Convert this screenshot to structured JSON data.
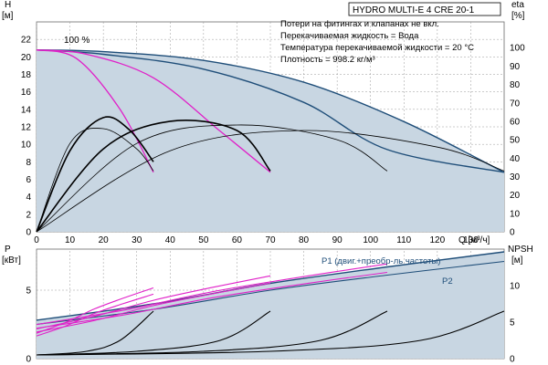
{
  "title": "HYDRO MULTI-E 4 CRE 20-1",
  "notes": [
    "Потери на фитингах и клапанах не вкл.",
    "Перекачиваемая жидкость = Вода",
    "Температура перекачиваемой жидкости = 20 °C",
    "Плотность = 998.2 кг/м³"
  ],
  "colors": {
    "shade": "#c8d6e2",
    "envelope": "#1f4e79",
    "pump_curve": "#000000",
    "efficiency": "#e020c8",
    "grid": "#9a9a9a",
    "p1_label": "#1f4e79"
  },
  "chart_data": [
    {
      "type": "line",
      "name": "top-head-chart",
      "xlabel": "Q [м³/ч]",
      "ylabel_left": "H",
      "ylabel_left_unit": "[м]",
      "ylabel_right": "eta",
      "ylabel_right_unit": "[%]",
      "x_ticks": [
        0,
        10,
        20,
        30,
        40,
        50,
        60,
        70,
        80,
        90,
        100,
        110,
        120,
        130
      ],
      "y_ticks_left": [
        0,
        2,
        4,
        6,
        8,
        10,
        12,
        14,
        16,
        18,
        20,
        22
      ],
      "y_ticks_right": [
        0,
        10,
        20,
        30,
        40,
        50,
        60,
        70,
        80,
        90,
        100
      ],
      "xlim": [
        0,
        140
      ],
      "ylim_left": [
        0,
        24
      ],
      "ylim_right": [
        0,
        114
      ],
      "annotation": "100 %",
      "series": [
        {
          "kind": "head",
          "x": [
            0,
            20,
            50,
            80,
            110,
            140
          ],
          "y": [
            20.8,
            20.6,
            19.6,
            17.1,
            12.6,
            6.8
          ]
        },
        {
          "kind": "head",
          "x": [
            0,
            20,
            50,
            80,
            105,
            140
          ],
          "y": [
            20.8,
            20.3,
            18.6,
            14.8,
            9.4,
            6.8
          ]
        },
        {
          "kind": "head",
          "x": [
            0,
            15,
            35,
            55,
            70
          ],
          "y": [
            20.8,
            20.3,
            17.6,
            11.5,
            6.8
          ]
        },
        {
          "kind": "head",
          "x": [
            0,
            12,
            25,
            35
          ],
          "y": [
            20.8,
            19.8,
            14.0,
            6.8
          ]
        },
        {
          "kind": "efficiency",
          "x": [
            0,
            10,
            20,
            30,
            35
          ],
          "y": [
            0,
            48,
            56,
            45,
            33
          ]
        },
        {
          "kind": "efficiency",
          "x": [
            0,
            10,
            20,
            28,
            35
          ],
          "y": [
            0,
            44,
            62,
            55,
            38
          ]
        },
        {
          "kind": "efficiency",
          "x": [
            0,
            20,
            40,
            60,
            70
          ],
          "y": [
            0,
            45,
            60,
            55,
            33
          ]
        },
        {
          "kind": "efficiency",
          "x": [
            0,
            30,
            60,
            90,
            105
          ],
          "y": [
            0,
            48,
            58,
            50,
            33
          ]
        },
        {
          "kind": "efficiency",
          "x": [
            0,
            40,
            80,
            120,
            140
          ],
          "y": [
            0,
            44,
            55,
            46,
            33
          ]
        }
      ]
    },
    {
      "type": "line",
      "name": "bottom-power-chart",
      "ylabel_left": "P",
      "ylabel_left_unit": "[кВт]",
      "ylabel_right": "NPSH",
      "ylabel_right_unit": "[м]",
      "y_ticks_left": [
        0,
        5
      ],
      "y_ticks_right": [
        0,
        5,
        10
      ],
      "xlim": [
        0,
        140
      ],
      "ylim_left": [
        0,
        8
      ],
      "ylim_right": [
        0,
        15
      ],
      "legend": [
        {
          "label": "P1 (двиг.+преобр-ль частоты)"
        },
        {
          "label": "P2"
        }
      ],
      "series": [
        {
          "kind": "power-P1",
          "x": [
            0,
            35,
            70,
            105,
            140
          ],
          "y": [
            2.8,
            4.0,
            5.5,
            6.7,
            7.8
          ]
        },
        {
          "kind": "power-P2",
          "x": [
            0,
            35,
            70,
            105,
            140
          ],
          "y": [
            2.5,
            3.6,
            5.0,
            6.1,
            7.1
          ]
        },
        {
          "kind": "npsh",
          "x": [
            0,
            15,
            25,
            35
          ],
          "y": [
            0.5,
            1.0,
            2.5,
            6.5
          ]
        },
        {
          "kind": "npsh",
          "x": [
            0,
            30,
            55,
            70
          ],
          "y": [
            0.5,
            1.0,
            2.5,
            6.5
          ]
        },
        {
          "kind": "npsh",
          "x": [
            0,
            50,
            85,
            105
          ],
          "y": [
            0.5,
            1.0,
            2.5,
            6.5
          ]
        },
        {
          "kind": "npsh",
          "x": [
            0,
            70,
            115,
            140
          ],
          "y": [
            0.5,
            1.0,
            2.5,
            6.5
          ]
        }
      ]
    }
  ]
}
